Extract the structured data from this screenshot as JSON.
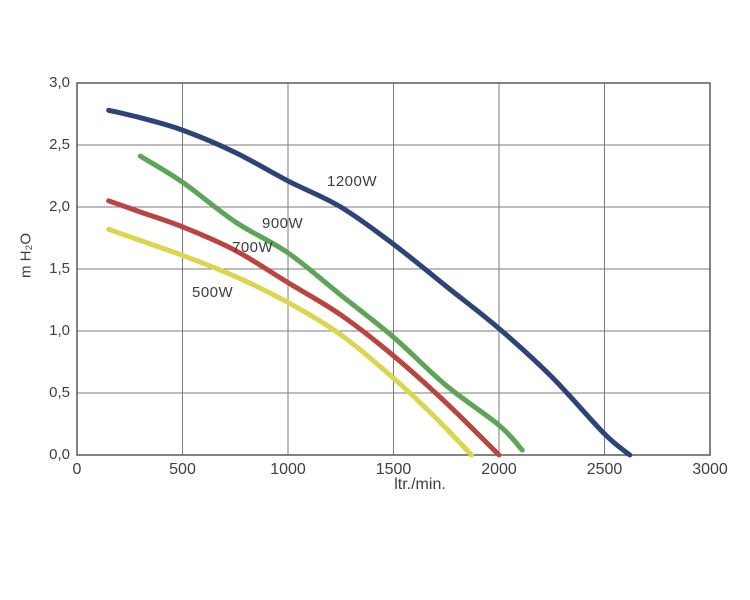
{
  "chart_data": {
    "type": "line",
    "xlabel": "ltr./min.",
    "ylabel": "m H₂O",
    "xlim": [
      0,
      3000
    ],
    "ylim": [
      0,
      3.0
    ],
    "grid": true,
    "legend_position": "inline-labels",
    "colors": {
      "grid": "#7b7b7b",
      "axis": "#5a5a5a",
      "text": "#3f3f3f",
      "background": "#ffffff"
    },
    "x_ticks": [
      {
        "value": 0,
        "label": "0"
      },
      {
        "value": 500,
        "label": "500"
      },
      {
        "value": 1000,
        "label": "1000"
      },
      {
        "value": 1500,
        "label": "1500"
      },
      {
        "value": 2000,
        "label": "2000"
      },
      {
        "value": 2500,
        "label": "2500"
      },
      {
        "value": 3000,
        "label": "3000"
      }
    ],
    "y_ticks": [
      {
        "value": 0.0,
        "label": "0,0"
      },
      {
        "value": 0.5,
        "label": "0,5"
      },
      {
        "value": 1.0,
        "label": "1,0"
      },
      {
        "value": 1.5,
        "label": "1,5"
      },
      {
        "value": 2.0,
        "label": "2,0"
      },
      {
        "value": 2.5,
        "label": "2,5"
      },
      {
        "value": 3.0,
        "label": "3,0"
      }
    ],
    "series": [
      {
        "label": "500W",
        "color": "#dcd54e",
        "points": [
          [
            150,
            1.82
          ],
          [
            300,
            1.73
          ],
          [
            500,
            1.61
          ],
          [
            750,
            1.44
          ],
          [
            1000,
            1.23
          ],
          [
            1250,
            0.97
          ],
          [
            1500,
            0.62
          ],
          [
            1700,
            0.3
          ],
          [
            1870,
            0.0
          ]
        ]
      },
      {
        "label": "700W",
        "color": "#bb4440",
        "points": [
          [
            150,
            2.05
          ],
          [
            300,
            1.96
          ],
          [
            500,
            1.84
          ],
          [
            750,
            1.65
          ],
          [
            1000,
            1.39
          ],
          [
            1250,
            1.13
          ],
          [
            1500,
            0.8
          ],
          [
            1750,
            0.42
          ],
          [
            2000,
            0.0
          ]
        ]
      },
      {
        "label": "900W",
        "color": "#5da556",
        "points": [
          [
            300,
            2.41
          ],
          [
            500,
            2.2
          ],
          [
            750,
            1.88
          ],
          [
            1000,
            1.63
          ],
          [
            1250,
            1.29
          ],
          [
            1500,
            0.95
          ],
          [
            1750,
            0.56
          ],
          [
            2000,
            0.24
          ],
          [
            2110,
            0.04
          ]
        ]
      },
      {
        "label": "1200W",
        "color": "#2e4377",
        "points": [
          [
            150,
            2.78
          ],
          [
            300,
            2.72
          ],
          [
            500,
            2.62
          ],
          [
            750,
            2.44
          ],
          [
            1000,
            2.21
          ],
          [
            1250,
            2.0
          ],
          [
            1500,
            1.7
          ],
          [
            1750,
            1.36
          ],
          [
            2000,
            1.02
          ],
          [
            2250,
            0.63
          ],
          [
            2500,
            0.17
          ],
          [
            2620,
            0.0
          ]
        ]
      }
    ]
  }
}
